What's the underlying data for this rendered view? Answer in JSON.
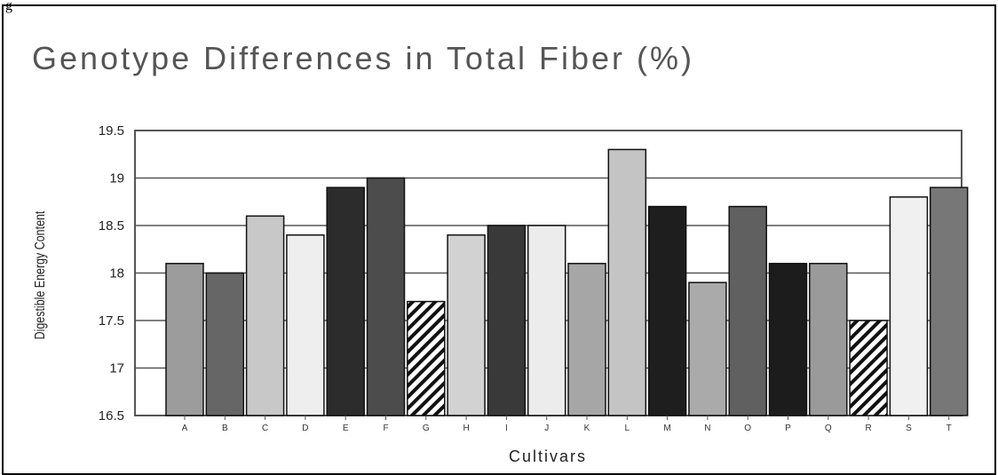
{
  "figure": {
    "corner_label": "g"
  },
  "chart_data": {
    "type": "bar",
    "title": "Genotype Differences in Total Fiber (%)",
    "xlabel": "Cultivars",
    "ylabel": "Digestible Energy Content",
    "ylim": [
      16.5,
      19.5
    ],
    "yticks": [
      "16.5",
      "17",
      "17.5",
      "18",
      "18.5",
      "19",
      "19.5"
    ],
    "grid": true,
    "categories": [
      "A",
      "B",
      "C",
      "D",
      "E",
      "F",
      "G",
      "H",
      "I",
      "J",
      "K",
      "L",
      "M",
      "N",
      "O",
      "P",
      "Q",
      "R",
      "S",
      "T"
    ],
    "values": [
      18.1,
      18.0,
      18.6,
      18.4,
      18.9,
      19.0,
      17.7,
      18.4,
      18.5,
      18.5,
      18.1,
      19.3,
      18.7,
      17.9,
      18.7,
      18.1,
      18.1,
      17.5,
      18.8,
      18.9
    ],
    "bar_colors": [
      "#9c9c9c",
      "#666666",
      "#c8c8c8",
      "#eeeeee",
      "#2c2c2c",
      "#4c4c4c",
      "hatch",
      "#d2d2d2",
      "#393939",
      "#ececec",
      "#a6a6a6",
      "#c4c4c4",
      "#1e1e1e",
      "#aaaaaa",
      "#606060",
      "#1c1c1c",
      "#9a9a9a",
      "hatch",
      "#f0f0f0",
      "#777777"
    ]
  }
}
